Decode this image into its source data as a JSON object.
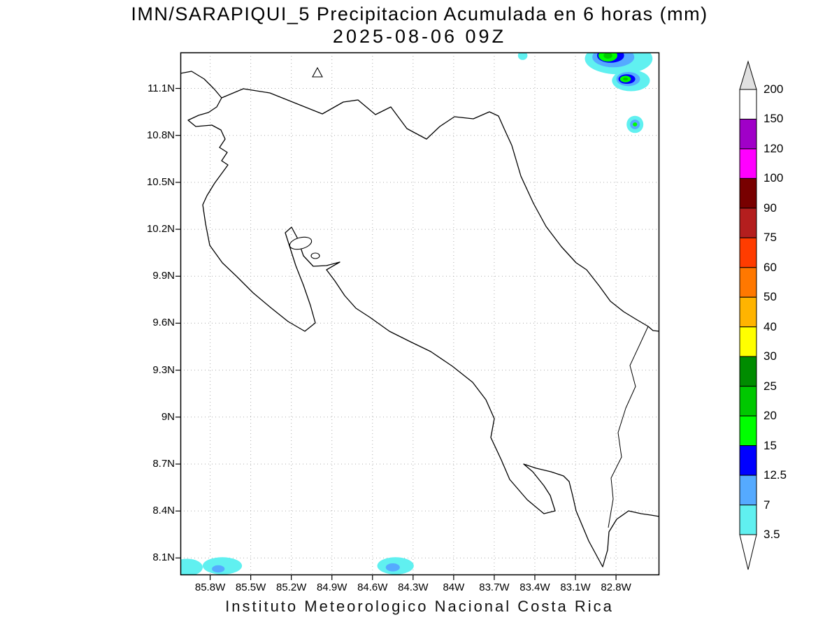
{
  "title": {
    "line1": "IMN/SARAPIQUI_5 Precipitacion Acumulada en 6 horas (mm)",
    "line2": "2025-08-06 09Z"
  },
  "footer": "Instituto Meteorologico Nacional Costa Rica",
  "chart_data": {
    "type": "heatmap",
    "subtype": "filled_contour_precipitation_map",
    "title": "IMN/SARAPIQUI_5 Precipitacion Acumulada en 6 horas (mm)",
    "valid_time": "2025-08-06 09Z",
    "units": "mm",
    "region": "Costa Rica",
    "gridlines": "dotted",
    "x_axis": {
      "labels": [
        "85.8W",
        "85.5W",
        "85.2W",
        "84.9W",
        "84.6W",
        "84.3W",
        "84W",
        "83.7W",
        "83.4W",
        "83.1W",
        "82.8W"
      ],
      "values": [
        -85.8,
        -85.5,
        -85.2,
        -84.9,
        -84.6,
        -84.3,
        -84.0,
        -83.7,
        -83.4,
        -83.1,
        -82.8
      ],
      "range": [
        -86.02,
        -82.48
      ]
    },
    "y_axis": {
      "labels": [
        "11.1N",
        "10.8N",
        "10.5N",
        "10.2N",
        "9.9N",
        "9.6N",
        "9.3N",
        "9N",
        "8.7N",
        "8.4N",
        "8.1N"
      ],
      "values": [
        11.1,
        10.8,
        10.5,
        10.2,
        9.9,
        9.6,
        9.3,
        9.0,
        8.7,
        8.4,
        8.1
      ],
      "range": [
        7.99,
        11.33
      ]
    },
    "colorbar": {
      "position": "right",
      "boundary_labels_top_to_bottom": [
        "200",
        "150",
        "120",
        "100",
        "90",
        "75",
        "60",
        "50",
        "40",
        "30",
        "25",
        "20",
        "15",
        "12.5",
        "7",
        "3.5"
      ],
      "segment_colors_top_to_bottom": [
        "#FFFFFF",
        "#A000C8",
        "#FF00FF",
        "#780000",
        "#B41E1E",
        "#FF3C00",
        "#FF7800",
        "#FFB400",
        "#FFFF00",
        "#008C00",
        "#00C800",
        "#00FF00",
        "#0000FF",
        "#55AAFF",
        "#60F0F0"
      ],
      "over_arrow_color": "#E0E0E0",
      "under_arrow_color": "#FFFFFF"
    },
    "level_colors": {
      "3.5": "#60F0F0",
      "7": "#55AAFF",
      "12.5": "#0000FF",
      "15": "#00FF00",
      "20": "#00C800"
    },
    "precip_features": [
      {
        "name": "caribbean-offshore-speck",
        "lon": -83.49,
        "lat": 11.31,
        "rx_deg": 0.035,
        "ry_deg": 0.028,
        "level": "3.5"
      },
      {
        "name": "caribbean-ne-cluster-outer",
        "lon": -82.78,
        "lat": 11.29,
        "rx_deg": 0.25,
        "ry_deg": 0.1,
        "level": "3.5"
      },
      {
        "name": "caribbean-ne-cluster-blue",
        "lon": -82.82,
        "lat": 11.3,
        "rx_deg": 0.155,
        "ry_deg": 0.065,
        "level": "7"
      },
      {
        "name": "caribbean-ne-cluster-deepblue",
        "lon": -82.84,
        "lat": 11.31,
        "rx_deg": 0.1,
        "ry_deg": 0.046,
        "level": "12.5"
      },
      {
        "name": "caribbean-ne-cluster-green",
        "lon": -82.86,
        "lat": 11.31,
        "rx_deg": 0.07,
        "ry_deg": 0.038,
        "level": "15"
      },
      {
        "name": "caribbean-ne-cluster-core",
        "lon": -82.86,
        "lat": 11.31,
        "rx_deg": 0.032,
        "ry_deg": 0.02,
        "level": "20"
      },
      {
        "name": "caribbean-ne-blob2-outer",
        "lon": -82.69,
        "lat": 11.15,
        "rx_deg": 0.14,
        "ry_deg": 0.068,
        "level": "3.5"
      },
      {
        "name": "caribbean-ne-blob2-blue",
        "lon": -82.71,
        "lat": 11.16,
        "rx_deg": 0.088,
        "ry_deg": 0.045,
        "level": "7"
      },
      {
        "name": "caribbean-ne-blob2-deepblue",
        "lon": -82.72,
        "lat": 11.16,
        "rx_deg": 0.062,
        "ry_deg": 0.031,
        "level": "12.5"
      },
      {
        "name": "caribbean-ne-blob2-green",
        "lon": -82.73,
        "lat": 11.16,
        "rx_deg": 0.04,
        "ry_deg": 0.021,
        "level": "15"
      },
      {
        "name": "caribbean-ne-blob2-core",
        "lon": -82.73,
        "lat": 11.16,
        "rx_deg": 0.018,
        "ry_deg": 0.01,
        "level": "20"
      },
      {
        "name": "caribbean-spot-outer",
        "lon": -82.66,
        "lat": 10.87,
        "rx_deg": 0.062,
        "ry_deg": 0.055,
        "level": "3.5"
      },
      {
        "name": "caribbean-spot-blue",
        "lon": -82.66,
        "lat": 10.87,
        "rx_deg": 0.036,
        "ry_deg": 0.031,
        "level": "7"
      },
      {
        "name": "caribbean-spot-green",
        "lon": -82.66,
        "lat": 10.87,
        "rx_deg": 0.016,
        "ry_deg": 0.013,
        "level": "15"
      },
      {
        "name": "pacific-sw-blob1",
        "lon": -85.97,
        "lat": 8.04,
        "rx_deg": 0.115,
        "ry_deg": 0.055,
        "level": "3.5"
      },
      {
        "name": "pacific-sw-blob2-outer",
        "lon": -85.71,
        "lat": 8.05,
        "rx_deg": 0.145,
        "ry_deg": 0.055,
        "level": "3.5"
      },
      {
        "name": "pacific-sw-blob2-blue",
        "lon": -85.74,
        "lat": 8.03,
        "rx_deg": 0.047,
        "ry_deg": 0.023,
        "level": "7"
      },
      {
        "name": "pacific-s-blob-outer",
        "lon": -84.43,
        "lat": 8.05,
        "rx_deg": 0.135,
        "ry_deg": 0.055,
        "level": "3.5"
      },
      {
        "name": "pacific-s-blob-blue",
        "lon": -84.45,
        "lat": 8.04,
        "rx_deg": 0.052,
        "ry_deg": 0.026,
        "level": "7"
      }
    ]
  }
}
